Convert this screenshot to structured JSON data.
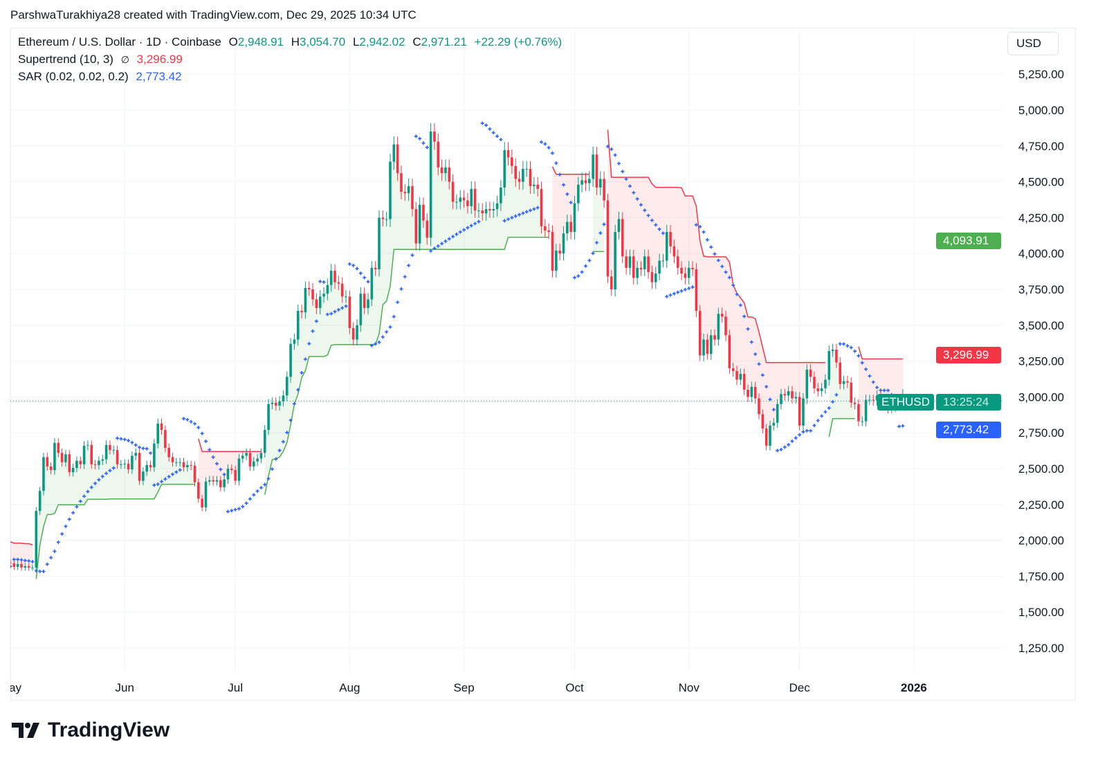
{
  "credit": "ParshwaTurakhiya28 created with TradingView.com, Dec 29, 2025 10:34 UTC",
  "legend": {
    "symbol": "Ethereum / U.S. Dollar · 1D · Coinbase",
    "o_label": "O",
    "o": "2,948.91",
    "h_label": "H",
    "h": "3,054.70",
    "l_label": "L",
    "l": "2,942.02",
    "c_label": "C",
    "c": "2,971.21",
    "change": "+22.29 (+0.76%)",
    "supertrend_name": "Supertrend (10, 3)",
    "supertrend_icon": "∅",
    "supertrend_value": "3,296.99",
    "sar_name": "SAR (0.02, 0.02, 0.2)",
    "sar_value": "2,773.42"
  },
  "currency_button": "USD",
  "price_labels": {
    "green": "4,093.91",
    "red": "3,296.99",
    "symbol": "ETHUSD",
    "countdown": "13:25:24",
    "blue": "2,773.42"
  },
  "logo_text": "TradingView",
  "colors": {
    "up": "#089981",
    "down": "#f23645",
    "sar": "#2962ff",
    "supertrend_up": "#4caf50",
    "supertrend_down": "#f23645",
    "label_green": "#4caf50"
  },
  "chart_data": {
    "type": "candlestick",
    "symbol": "ETHUSD",
    "interval": "1D",
    "start_date": "2025-05-01",
    "end_date": "2025-12-29",
    "first_open": 1845,
    "last_candle": {
      "open": 2948.91,
      "high": 3054.7,
      "low": 2942.02,
      "close": 2971.21
    },
    "closes": [
      1840,
      1815,
      1835,
      1810,
      1820,
      1810,
      1810,
      2205,
      2345,
      2580,
      2515,
      2490,
      2680,
      2610,
      2545,
      2600,
      2475,
      2505,
      2555,
      2530,
      2660,
      2665,
      2530,
      2525,
      2555,
      2565,
      2665,
      2630,
      2630,
      2530,
      2530,
      2535,
      2495,
      2590,
      2610,
      2415,
      2480,
      2525,
      2510,
      2675,
      2815,
      2770,
      2645,
      2580,
      2545,
      2545,
      2545,
      2510,
      2525,
      2520,
      2405,
      2290,
      2230,
      2410,
      2420,
      2410,
      2420,
      2370,
      2425,
      2500,
      2490,
      2415,
      2570,
      2590,
      2610,
      2515,
      2550,
      2570,
      2610,
      2770,
      2950,
      2960,
      2940,
      2970,
      3010,
      3140,
      3370,
      3400,
      3600,
      3590,
      3760,
      3750,
      3680,
      3620,
      3700,
      3720,
      3780,
      3880,
      3800,
      3790,
      3700,
      3700,
      3480,
      3400,
      3500,
      3720,
      3620,
      3680,
      3900,
      3890,
      4250,
      4240,
      4240,
      4640,
      4760,
      4560,
      4430,
      4420,
      4470,
      4310,
      4070,
      4340,
      4230,
      4110,
      4850,
      4780,
      4600,
      4560,
      4600,
      4500,
      4360,
      4360,
      4390,
      4370,
      4330,
      4450,
      4300,
      4300,
      4280,
      4310,
      4300,
      4310,
      4350,
      4460,
      4720,
      4670,
      4610,
      4520,
      4500,
      4590,
      4590,
      4470,
      4480,
      4450,
      4190,
      4160,
      4150,
      3880,
      4020,
      4000,
      4140,
      4220,
      4150,
      4350,
      4480,
      4510,
      4490,
      4520,
      4690,
      4460,
      4520,
      4370,
      3840,
      3750,
      4150,
      4240,
      3980,
      3900,
      3980,
      3830,
      3900,
      3890,
      3980,
      3870,
      3800,
      3860,
      3950,
      3950,
      4150,
      4050,
      3980,
      3900,
      3860,
      3830,
      3900,
      3890,
      3600,
      3290,
      3400,
      3300,
      3430,
      3400,
      3580,
      3560,
      3430,
      3200,
      3180,
      3120,
      3160,
      3050,
      3000,
      3070,
      2990,
      2880,
      2780,
      2660,
      2800,
      2820,
      2950,
      3020,
      3010,
      3040,
      2990,
      3000,
      2800,
      2990,
      3190,
      3140,
      3060,
      3040,
      3060,
      3120,
      3320,
      3330,
      3240,
      3090,
      3110,
      3100,
      2960,
      2950,
      2830,
      2830,
      2980,
      2980,
      2975,
      3010,
      2960,
      2945,
      2920,
      2930,
      2940,
      2948.91,
      2971.21
    ],
    "indicators": [
      {
        "name": "Supertrend",
        "params": [
          10,
          3
        ],
        "last_value": 3296.99
      },
      {
        "name": "Parabolic SAR",
        "params": [
          0.02,
          0.02,
          0.2
        ],
        "last_value": 2773.42
      }
    ],
    "y_ticks": [
      "5,250.00",
      "5,000.00",
      "4,750.00",
      "4,500.00",
      "4,250.00",
      "4,000.00",
      "3,750.00",
      "3,500.00",
      "3,250.00",
      "3,000.00",
      "2,750.00",
      "2,500.00",
      "2,250.00",
      "2,000.00",
      "1,750.00",
      "1,500.00",
      "1,250.00"
    ],
    "y_tick_values": [
      5250,
      5000,
      4750,
      4500,
      4250,
      4000,
      3750,
      3500,
      3250,
      3000,
      2750,
      2500,
      2250,
      2000,
      1750,
      1500,
      1250
    ],
    "x_ticks": [
      {
        "label": "May",
        "day": 0
      },
      {
        "label": "Jun",
        "day": 31
      },
      {
        "label": "Jul",
        "day": 61
      },
      {
        "label": "Aug",
        "day": 92
      },
      {
        "label": "Sep",
        "day": 123
      },
      {
        "label": "Oct",
        "day": 153
      },
      {
        "label": "Nov",
        "day": 184
      },
      {
        "label": "Dec",
        "day": 214
      },
      {
        "label": "2026",
        "day": 245
      }
    ],
    "current_price": 2971.21,
    "grid": true,
    "scale": "linear"
  }
}
